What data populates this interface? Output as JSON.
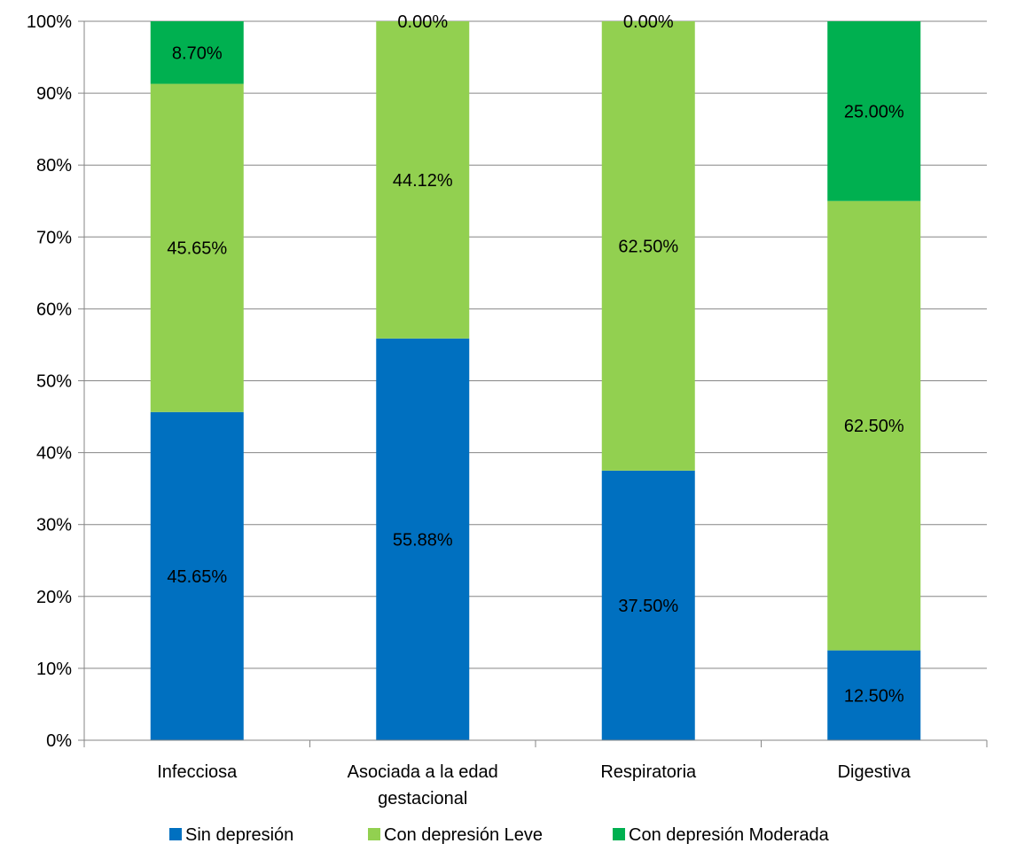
{
  "chart_data": {
    "type": "bar",
    "stacked": true,
    "percent": true,
    "categories": [
      [
        "Infecciosa"
      ],
      [
        "Asociada a la edad",
        "gestacional"
      ],
      [
        "Respiratoria"
      ],
      [
        "Digestiva"
      ]
    ],
    "series": [
      {
        "name": "Sin depresión",
        "color": "#0070C0",
        "values": [
          45.65,
          55.88,
          37.5,
          12.5
        ],
        "labels": [
          "45.65%",
          "55.88%",
          "37.50%",
          "12.50%"
        ]
      },
      {
        "name": "Con depresión Leve",
        "color": "#92D050",
        "values": [
          45.65,
          44.12,
          62.5,
          62.5
        ],
        "labels": [
          "45.65%",
          "44.12%",
          "62.50%",
          "62.50%"
        ]
      },
      {
        "name": "Con depresión Moderada",
        "color": "#00B050",
        "values": [
          8.7,
          0.0,
          0.0,
          25.0
        ],
        "labels": [
          "8.70%",
          "0.00%",
          "0.00%",
          "25.00%"
        ]
      }
    ],
    "ylim": [
      0,
      100
    ],
    "yticks": [
      "0%",
      "10%",
      "20%",
      "30%",
      "40%",
      "50%",
      "60%",
      "70%",
      "80%",
      "90%",
      "100%"
    ],
    "grid": true,
    "legend": "bottom",
    "title": "",
    "xlabel": "",
    "ylabel": ""
  }
}
